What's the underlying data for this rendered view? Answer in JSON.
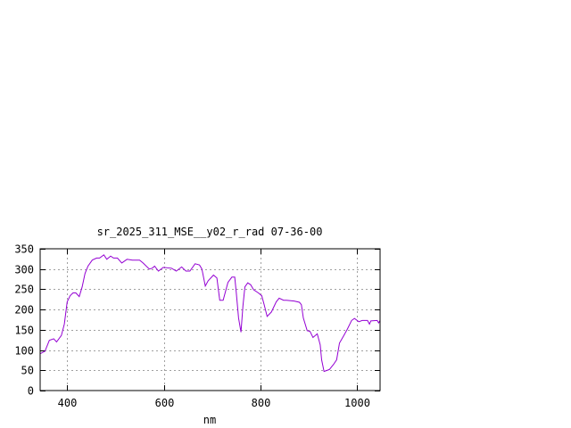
{
  "chart_data": {
    "type": "line",
    "title": "sr_2025_311_MSE__y02_r_rad 07-36-00",
    "xlabel": "nm",
    "ylabel": "",
    "xlim": [
      344,
      1048
    ],
    "ylim": [
      0,
      350
    ],
    "xticks": [
      400,
      600,
      800,
      1000
    ],
    "yticks": [
      0,
      50,
      100,
      150,
      200,
      250,
      300,
      350
    ],
    "grid": true,
    "line_color": "#9400d3",
    "series": [
      {
        "x": [
          344,
          354,
          363,
          372,
          378,
          388,
          394,
          400,
          406,
          412,
          418,
          425,
          431,
          437,
          443,
          452,
          461,
          467,
          476,
          482,
          490,
          496,
          504,
          513,
          524,
          535,
          550,
          557,
          570,
          576,
          581,
          589,
          599,
          616,
          626,
          637,
          646,
          654,
          665,
          674,
          679,
          686,
          692,
          703,
          710,
          716,
          723,
          733,
          741,
          747,
          750,
          755,
          760,
          764,
          768,
          774,
          780,
          786,
          796,
          803,
          808,
          814,
          823,
          833,
          839,
          848,
          854,
          870,
          881,
          885,
          889,
          897,
          903,
          909,
          918,
          924,
          927,
          932,
          943,
          952,
          958,
          964,
          972,
          980,
          989,
          995,
          1004,
          1011,
          1022,
          1026,
          1029,
          1042,
          1045,
          1048
        ],
        "y": [
          91,
          97,
          124,
          128,
          120,
          136,
          164,
          219,
          234,
          241,
          241,
          232,
          256,
          289,
          307,
          322,
          327,
          327,
          335,
          324,
          332,
          327,
          327,
          315,
          324,
          322,
          322,
          315,
          300,
          302,
          307,
          295,
          304,
          302,
          295,
          305,
          295,
          295,
          313,
          310,
          300,
          258,
          271,
          285,
          278,
          223,
          223,
          267,
          280,
          280,
          245,
          179,
          144,
          209,
          256,
          266,
          261,
          249,
          241,
          234,
          212,
          183,
          194,
          219,
          228,
          223,
          223,
          221,
          218,
          212,
          179,
          148,
          146,
          131,
          140,
          113,
          76,
          47,
          52,
          65,
          76,
          117,
          134,
          151,
          173,
          178,
          170,
          173,
          173,
          164,
          172,
          173,
          167,
          173
        ]
      }
    ]
  }
}
